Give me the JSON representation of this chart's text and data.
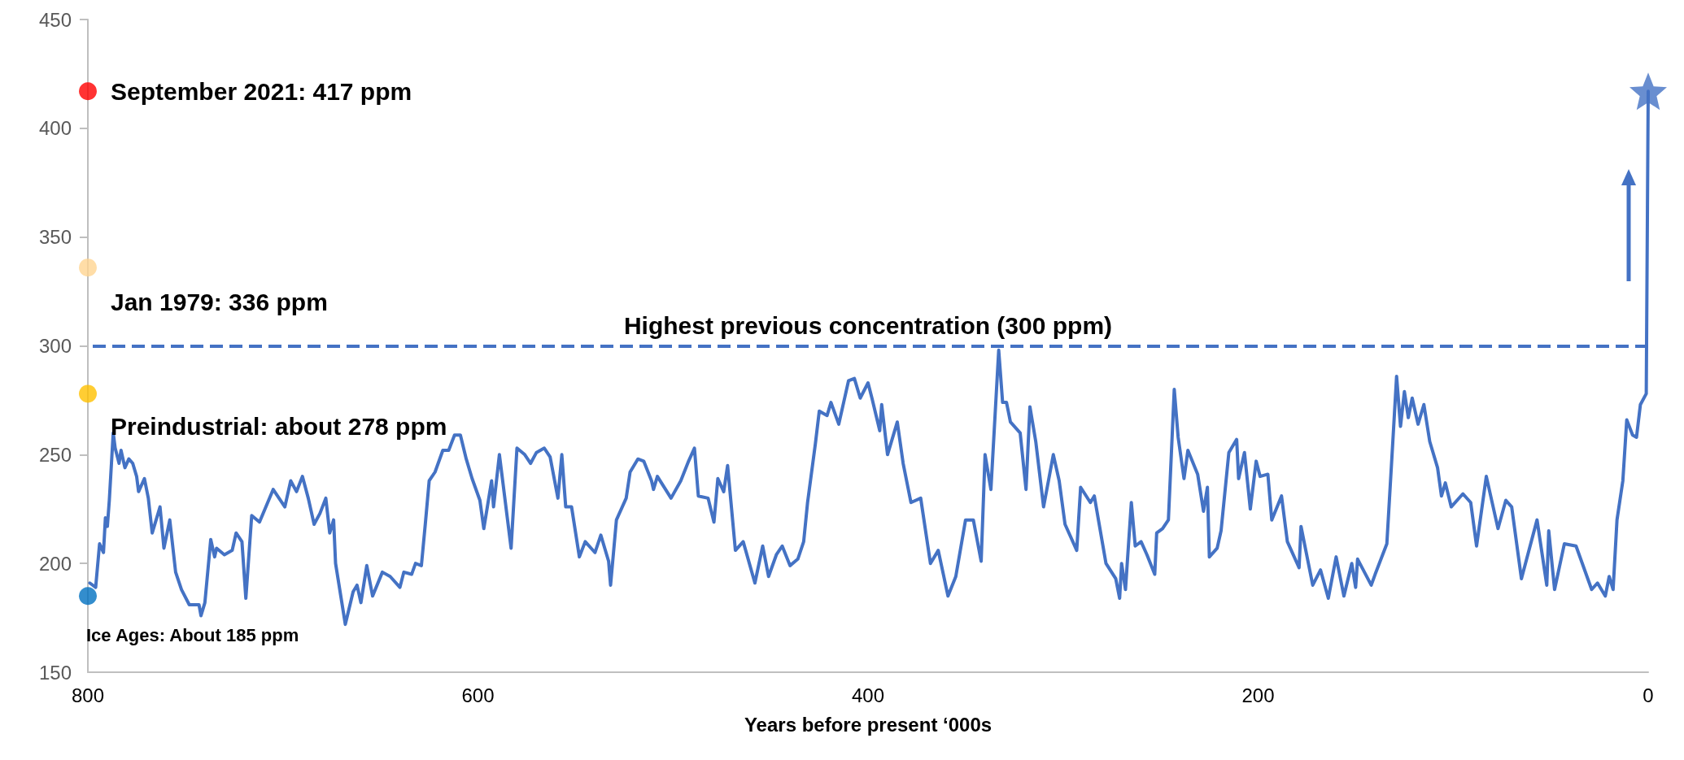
{
  "chart_data": {
    "type": "line",
    "xlabel": "Years before present ‘000s",
    "xlim": [
      800,
      0
    ],
    "xticks": [
      800,
      600,
      400,
      200,
      0
    ],
    "ylim": [
      150,
      450
    ],
    "yticks": [
      150,
      200,
      250,
      300,
      350,
      400,
      450
    ],
    "grid": false,
    "series": [
      {
        "type": "line",
        "color": "#4472c4",
        "marker": "none",
        "line_style": "solid",
        "x": [
          799,
          796,
          794,
          792,
          791,
          790,
          789,
          787,
          786,
          784,
          783,
          781,
          779,
          777,
          775,
          774,
          771,
          769,
          767,
          763,
          761,
          758,
          755,
          752,
          748,
          743,
          742,
          740,
          737,
          735,
          734,
          730,
          726,
          724,
          721,
          719,
          716,
          712,
          705,
          699,
          696,
          693,
          690,
          687,
          684,
          681,
          678,
          676,
          674,
          673,
          668,
          664,
          662,
          660,
          657,
          654,
          649,
          645,
          640,
          638,
          634,
          632,
          629,
          627,
          625,
          622,
          618,
          615,
          612,
          609,
          606,
          603,
          599,
          597,
          593,
          592,
          589,
          583,
          580,
          576,
          573,
          570,
          566,
          563,
          559,
          557,
          555,
          552,
          548,
          545,
          540,
          537,
          533,
          532,
          529,
          524,
          522,
          518,
          515,
          511,
          510,
          508,
          501,
          496,
          492,
          489,
          487,
          482,
          479,
          477,
          474,
          472,
          468,
          464,
          458,
          454,
          451,
          447,
          444,
          440,
          436,
          433,
          431,
          427,
          425,
          421,
          419,
          415,
          410,
          407,
          404,
          400,
          398,
          394,
          393,
          390,
          385,
          382,
          378,
          373,
          368,
          364,
          359,
          355,
          350,
          346,
          342,
          340,
          337,
          333,
          331,
          329,
          327,
          322,
          319,
          317,
          314,
          310,
          305,
          302,
          299,
          293,
          291,
          286,
          284,
          278,
          273,
          271,
          270,
          268,
          265,
          263,
          260,
          257,
          253,
          252,
          249,
          246,
          243,
          241,
          238,
          236,
          231,
          228,
          226,
          225,
          221,
          219,
          215,
          211,
          210,
          207,
          204,
          201,
          199,
          195,
          193,
          188,
          185,
          179,
          178,
          172,
          168,
          164,
          160,
          156,
          152,
          150,
          149,
          142,
          140,
          134,
          131,
          129,
          127,
          125,
          123,
          121,
          118,
          115,
          112,
          108,
          106,
          104,
          101,
          95,
          91,
          88,
          83,
          77,
          73,
          70,
          65,
          57,
          52,
          51,
          48,
          43,
          37,
          29,
          26,
          22,
          20,
          18,
          16,
          13,
          11,
          8,
          6,
          4,
          1,
          0
        ],
        "values": [
          191,
          189,
          209,
          205,
          221,
          217,
          229,
          260,
          253,
          246,
          252,
          244,
          248,
          246,
          240,
          233,
          239,
          230,
          214,
          226,
          207,
          220,
          196,
          188,
          181,
          181,
          176,
          182,
          211,
          203,
          207,
          204,
          206,
          214,
          210,
          184,
          222,
          219,
          234,
          226,
          238,
          233,
          240,
          230,
          218,
          223,
          230,
          214,
          220,
          200,
          172,
          187,
          190,
          182,
          199,
          185,
          196,
          194,
          189,
          196,
          195,
          200,
          199,
          218,
          238,
          242,
          252,
          252,
          259,
          259,
          248,
          239,
          229,
          216,
          238,
          226,
          250,
          207,
          253,
          250,
          246,
          251,
          253,
          249,
          230,
          250,
          226,
          226,
          203,
          210,
          205,
          213,
          201,
          190,
          220,
          230,
          242,
          248,
          247,
          238,
          234,
          240,
          230,
          238,
          247,
          253,
          231,
          230,
          219,
          239,
          233,
          245,
          206,
          210,
          191,
          208,
          194,
          204,
          208,
          199,
          202,
          210,
          228,
          255,
          270,
          268,
          274,
          264,
          284,
          285,
          276,
          283,
          276,
          261,
          273,
          250,
          265,
          246,
          228,
          230,
          200,
          206,
          185,
          194,
          220,
          220,
          201,
          250,
          234,
          298,
          274,
          274,
          265,
          260,
          234,
          272,
          256,
          226,
          250,
          238,
          218,
          206,
          235,
          228,
          231,
          200,
          193,
          184,
          200,
          188,
          228,
          208,
          210,
          204,
          195,
          214,
          216,
          220,
          280,
          258,
          239,
          252,
          241,
          224,
          235,
          203,
          207,
          215,
          251,
          257,
          239,
          251,
          225,
          247,
          240,
          241,
          220,
          231,
          210,
          198,
          217,
          190,
          197,
          184,
          203,
          185,
          200,
          189,
          202,
          190,
          195,
          209,
          255,
          286,
          263,
          279,
          267,
          276,
          264,
          273,
          256,
          244,
          231,
          237,
          226,
          232,
          228,
          208,
          240,
          216,
          229,
          226,
          193,
          220,
          190,
          215,
          188,
          209,
          208,
          188,
          191,
          185,
          194,
          188,
          220,
          238,
          266,
          259,
          258,
          273,
          278,
          417
        ]
      },
      {
        "type": "scatter",
        "marker": "circle",
        "x": [
          800,
          800,
          800,
          800
        ],
        "values": [
          417,
          336,
          278,
          185
        ],
        "colors": [
          "#ff0000",
          "#ffd591",
          "#ffc000",
          "#0070c0"
        ]
      },
      {
        "type": "scatter",
        "marker": "star",
        "color": "#4472c4",
        "x": [
          0
        ],
        "values": [
          417
        ]
      }
    ],
    "ref_lines": [
      {
        "axis": "y",
        "value": 300,
        "label": "Highest previous concentration (300 ppm)",
        "color": "#4472c4",
        "line_style": "dashed"
      }
    ],
    "annotations": [
      "September 2021: 417 ppm",
      "Jan 1979: 336 ppm",
      "Preindustrial: about 278 ppm",
      "Ice Ages: About 185 ppm"
    ]
  }
}
